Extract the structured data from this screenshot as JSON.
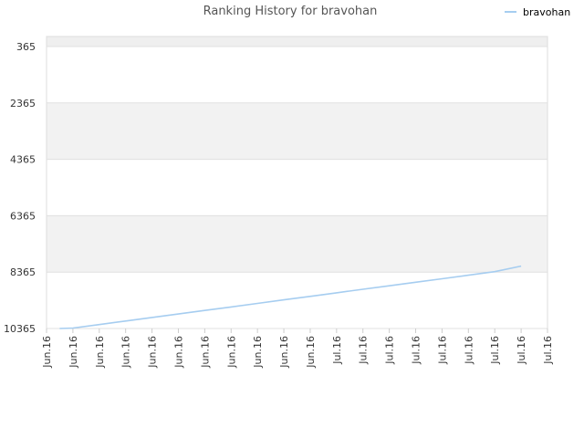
{
  "chart_data": {
    "type": "line",
    "title": "Ranking History for bravohan",
    "xlabel": "",
    "ylabel": "",
    "y_inverted": true,
    "ylim": [
      365,
      10365
    ],
    "yticks": [
      365,
      2365,
      4365,
      6365,
      8365,
      10365
    ],
    "ytick_labels": [
      "365",
      "2365",
      "4365",
      "6365",
      "8365",
      "10365"
    ],
    "xtick_labels": [
      "Jun.16",
      "Jun.16",
      "Jun.16",
      "Jun.16",
      "Jun.16",
      "Jun.16",
      "Jun.16",
      "Jun.16",
      "Jun.16",
      "Jun.16",
      "Jun.16",
      "Jul.16",
      "Jul.16",
      "Jul.16",
      "Jul.16",
      "Jul.16",
      "Jul.16",
      "Jul.16",
      "Jul.16",
      "Jul.16"
    ],
    "grid": true,
    "legend_position": "top-right",
    "series": [
      {
        "name": "bravohan",
        "color": "#a6cdf0",
        "x": [
          0.5,
          1,
          2,
          3,
          4,
          5,
          6,
          7,
          8,
          9,
          10,
          11,
          12,
          13,
          14,
          15,
          16,
          17,
          18
        ],
        "values": [
          10365,
          10350,
          10225,
          10100,
          9975,
          9850,
          9725,
          9600,
          9475,
          9350,
          9225,
          9100,
          8975,
          8850,
          8725,
          8600,
          8475,
          8350,
          8150
        ]
      }
    ]
  }
}
